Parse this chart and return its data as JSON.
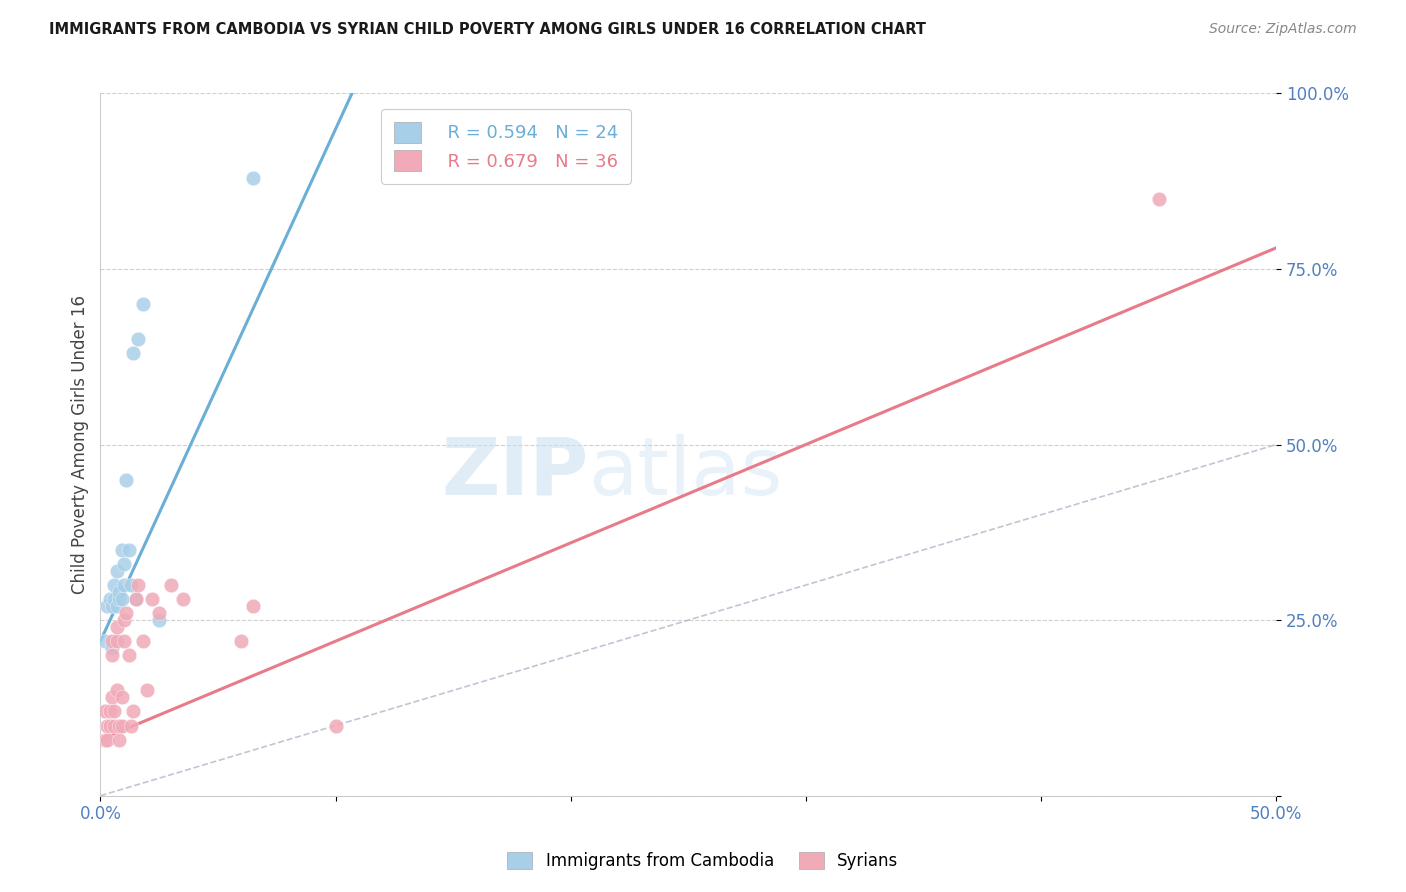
{
  "title": "IMMIGRANTS FROM CAMBODIA VS SYRIAN CHILD POVERTY AMONG GIRLS UNDER 16 CORRELATION CHART",
  "source": "Source: ZipAtlas.com",
  "ylabel": "Child Poverty Among Girls Under 16",
  "xlim": [
    0.0,
    0.5
  ],
  "ylim": [
    0.0,
    1.0
  ],
  "xticks": [
    0.0,
    0.1,
    0.2,
    0.3,
    0.4,
    0.5
  ],
  "xticklabels": [
    "0.0%",
    "",
    "",
    "",
    "",
    "50.0%"
  ],
  "yticks": [
    0.0,
    0.25,
    0.5,
    0.75,
    1.0
  ],
  "yticklabels": [
    "",
    "25.0%",
    "50.0%",
    "75.0%",
    "100.0%"
  ],
  "blue_R": 0.594,
  "blue_N": 24,
  "pink_R": 0.679,
  "pink_N": 36,
  "blue_label": "Immigrants from Cambodia",
  "pink_label": "Syrians",
  "blue_color": "#6baed6",
  "pink_color": "#e87b8a",
  "blue_marker_color": "#a8cfe8",
  "pink_marker_color": "#f0aab8",
  "watermark_zip": "ZIP",
  "watermark_atlas": "atlas",
  "blue_scatter_x": [
    0.002,
    0.003,
    0.004,
    0.005,
    0.005,
    0.006,
    0.006,
    0.007,
    0.007,
    0.008,
    0.008,
    0.009,
    0.009,
    0.01,
    0.01,
    0.011,
    0.012,
    0.013,
    0.014,
    0.015,
    0.016,
    0.018,
    0.025,
    0.065
  ],
  "blue_scatter_y": [
    0.22,
    0.27,
    0.28,
    0.21,
    0.27,
    0.3,
    0.28,
    0.32,
    0.27,
    0.28,
    0.29,
    0.35,
    0.28,
    0.3,
    0.33,
    0.45,
    0.35,
    0.3,
    0.63,
    0.28,
    0.65,
    0.7,
    0.25,
    0.88
  ],
  "pink_scatter_x": [
    0.002,
    0.002,
    0.003,
    0.003,
    0.004,
    0.004,
    0.005,
    0.005,
    0.005,
    0.006,
    0.006,
    0.007,
    0.007,
    0.007,
    0.008,
    0.008,
    0.009,
    0.009,
    0.01,
    0.01,
    0.011,
    0.012,
    0.013,
    0.014,
    0.015,
    0.016,
    0.018,
    0.02,
    0.022,
    0.025,
    0.03,
    0.035,
    0.06,
    0.065,
    0.1,
    0.45
  ],
  "pink_scatter_y": [
    0.12,
    0.08,
    0.08,
    0.1,
    0.1,
    0.12,
    0.14,
    0.2,
    0.22,
    0.1,
    0.12,
    0.15,
    0.22,
    0.24,
    0.08,
    0.1,
    0.1,
    0.14,
    0.22,
    0.25,
    0.26,
    0.2,
    0.1,
    0.12,
    0.28,
    0.3,
    0.22,
    0.15,
    0.28,
    0.26,
    0.3,
    0.28,
    0.22,
    0.27,
    0.1,
    0.85
  ],
  "blue_line_x": [
    0.0,
    0.107
  ],
  "blue_line_y": [
    0.22,
    1.0
  ],
  "pink_line_x": [
    0.0,
    0.5
  ],
  "pink_line_y": [
    0.08,
    0.78
  ],
  "ref_line_x": [
    0.0,
    0.5
  ],
  "ref_line_y": [
    0.0,
    0.5
  ],
  "grid_color": "#d0d0d0",
  "tick_color": "#5080c0"
}
